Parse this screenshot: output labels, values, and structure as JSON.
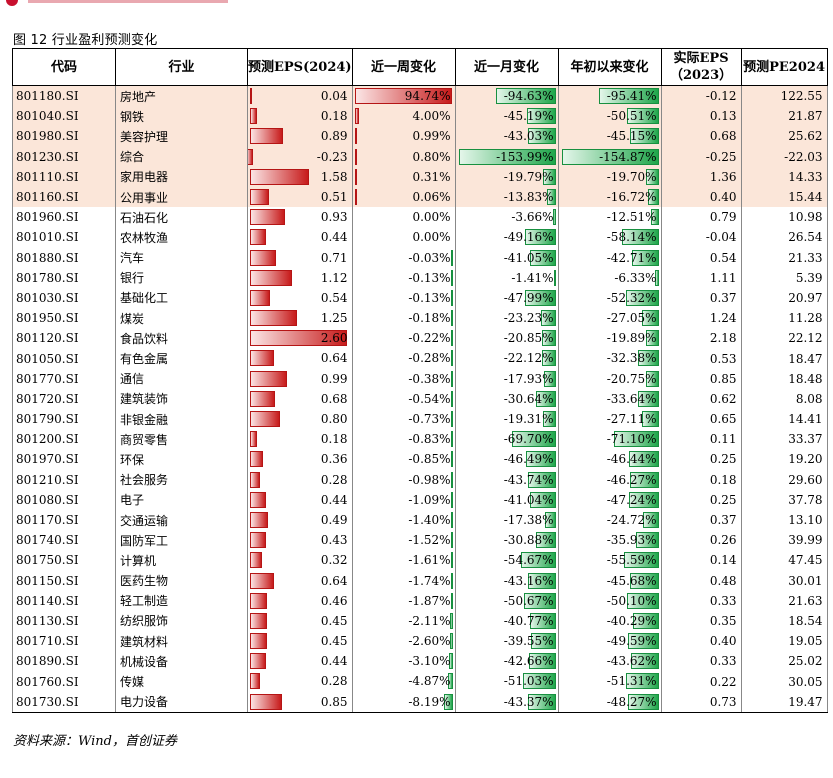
{
  "figure_title": "图 12 行业盈利预测变化",
  "source": "资料来源：Wind，首创证券",
  "colors": {
    "highlight_row": "#fbe6d9",
    "bar_red": "#c71b1b",
    "bar_green": "#1fa64a"
  },
  "headers": {
    "code": "代码",
    "industry": "行业",
    "eps": "预测EPS(2024)",
    "week": "近一周变化",
    "month": "近一月变化",
    "ytd": "年初以来变化",
    "actual_line1": "实际EPS",
    "actual_line2": "（2023）",
    "pe": "预测PE2024"
  },
  "rows": [
    {
      "code": "801180.SI",
      "industry": "房地产",
      "eps": 0.04,
      "eps_t": "0.04",
      "wk": 94.74,
      "wk_t": "94.74%",
      "mo": -94.63,
      "mo_t": "-94.63%",
      "ytd": -95.41,
      "ytd_t": "-95.41%",
      "act": "-0.12",
      "pe": "122.55",
      "hl": true
    },
    {
      "code": "801040.SI",
      "industry": "钢铁",
      "eps": 0.18,
      "eps_t": "0.18",
      "wk": 4.0,
      "wk_t": "4.00%",
      "mo": -45.19,
      "mo_t": "-45.19%",
      "ytd": -50.51,
      "ytd_t": "-50.51%",
      "act": "0.13",
      "pe": "21.87",
      "hl": true
    },
    {
      "code": "801980.SI",
      "industry": "美容护理",
      "eps": 0.89,
      "eps_t": "0.89",
      "wk": 0.99,
      "wk_t": "0.99%",
      "mo": -43.03,
      "mo_t": "-43.03%",
      "ytd": -45.15,
      "ytd_t": "-45.15%",
      "act": "0.68",
      "pe": "25.62",
      "hl": true
    },
    {
      "code": "801230.SI",
      "industry": "综合",
      "eps": -0.23,
      "eps_t": "-0.23",
      "wk": 0.8,
      "wk_t": "0.80%",
      "mo": -153.99,
      "mo_t": "-153.99%",
      "ytd": -154.87,
      "ytd_t": "-154.87%",
      "act": "-0.25",
      "pe": "-22.03",
      "hl": true
    },
    {
      "code": "801110.SI",
      "industry": "家用电器",
      "eps": 1.58,
      "eps_t": "1.58",
      "wk": 0.31,
      "wk_t": "0.31%",
      "mo": -19.79,
      "mo_t": "-19.79%",
      "ytd": -19.7,
      "ytd_t": "-19.70%",
      "act": "1.36",
      "pe": "14.33",
      "hl": true
    },
    {
      "code": "801160.SI",
      "industry": "公用事业",
      "eps": 0.51,
      "eps_t": "0.51",
      "wk": 0.06,
      "wk_t": "0.06%",
      "mo": -13.83,
      "mo_t": "-13.83%",
      "ytd": -16.72,
      "ytd_t": "-16.72%",
      "act": "0.40",
      "pe": "15.44",
      "hl": true
    },
    {
      "code": "801960.SI",
      "industry": "石油石化",
      "eps": 0.93,
      "eps_t": "0.93",
      "wk": 0.0,
      "wk_t": "0.00%",
      "mo": -3.66,
      "mo_t": "-3.66%",
      "ytd": -12.51,
      "ytd_t": "-12.51%",
      "act": "0.79",
      "pe": "10.98",
      "hl": false
    },
    {
      "code": "801010.SI",
      "industry": "农林牧渔",
      "eps": 0.44,
      "eps_t": "0.44",
      "wk": 0.0,
      "wk_t": "0.00%",
      "mo": -49.16,
      "mo_t": "-49.16%",
      "ytd": -58.14,
      "ytd_t": "-58.14%",
      "act": "-0.04",
      "pe": "26.54",
      "hl": false
    },
    {
      "code": "801880.SI",
      "industry": "汽车",
      "eps": 0.71,
      "eps_t": "0.71",
      "wk": -0.03,
      "wk_t": "-0.03%",
      "mo": -41.05,
      "mo_t": "-41.05%",
      "ytd": -42.71,
      "ytd_t": "-42.71%",
      "act": "0.54",
      "pe": "21.33",
      "hl": false
    },
    {
      "code": "801780.SI",
      "industry": "银行",
      "eps": 1.12,
      "eps_t": "1.12",
      "wk": -0.13,
      "wk_t": "-0.13%",
      "mo": -1.41,
      "mo_t": "-1.41%",
      "ytd": -6.33,
      "ytd_t": "-6.33%",
      "act": "1.11",
      "pe": "5.39",
      "hl": false
    },
    {
      "code": "801030.SI",
      "industry": "基础化工",
      "eps": 0.54,
      "eps_t": "0.54",
      "wk": -0.13,
      "wk_t": "-0.13%",
      "mo": -47.99,
      "mo_t": "-47.99%",
      "ytd": -52.32,
      "ytd_t": "-52.32%",
      "act": "0.37",
      "pe": "20.97",
      "hl": false
    },
    {
      "code": "801950.SI",
      "industry": "煤炭",
      "eps": 1.25,
      "eps_t": "1.25",
      "wk": -0.18,
      "wk_t": "-0.18%",
      "mo": -23.23,
      "mo_t": "-23.23%",
      "ytd": -27.05,
      "ytd_t": "-27.05%",
      "act": "1.24",
      "pe": "11.28",
      "hl": false
    },
    {
      "code": "801120.SI",
      "industry": "食品饮料",
      "eps": 2.6,
      "eps_t": "2.60",
      "wk": -0.22,
      "wk_t": "-0.22%",
      "mo": -20.85,
      "mo_t": "-20.85%",
      "ytd": -19.89,
      "ytd_t": "-19.89%",
      "act": "2.18",
      "pe": "22.12",
      "hl": false
    },
    {
      "code": "801050.SI",
      "industry": "有色金属",
      "eps": 0.64,
      "eps_t": "0.64",
      "wk": -0.28,
      "wk_t": "-0.28%",
      "mo": -22.12,
      "mo_t": "-22.12%",
      "ytd": -32.38,
      "ytd_t": "-32.38%",
      "act": "0.53",
      "pe": "18.47",
      "hl": false
    },
    {
      "code": "801770.SI",
      "industry": "通信",
      "eps": 0.99,
      "eps_t": "0.99",
      "wk": -0.38,
      "wk_t": "-0.38%",
      "mo": -17.93,
      "mo_t": "-17.93%",
      "ytd": -20.75,
      "ytd_t": "-20.75%",
      "act": "0.85",
      "pe": "18.48",
      "hl": false
    },
    {
      "code": "801720.SI",
      "industry": "建筑装饰",
      "eps": 0.68,
      "eps_t": "0.68",
      "wk": -0.54,
      "wk_t": "-0.54%",
      "mo": -30.64,
      "mo_t": "-30.64%",
      "ytd": -33.64,
      "ytd_t": "-33.64%",
      "act": "0.62",
      "pe": "8.08",
      "hl": false
    },
    {
      "code": "801790.SI",
      "industry": "非银金融",
      "eps": 0.8,
      "eps_t": "0.80",
      "wk": -0.73,
      "wk_t": "-0.73%",
      "mo": -19.31,
      "mo_t": "-19.31%",
      "ytd": -27.11,
      "ytd_t": "-27.11%",
      "act": "0.65",
      "pe": "14.41",
      "hl": false
    },
    {
      "code": "801200.SI",
      "industry": "商贸零售",
      "eps": 0.18,
      "eps_t": "0.18",
      "wk": -0.83,
      "wk_t": "-0.83%",
      "mo": -69.7,
      "mo_t": "-69.70%",
      "ytd": -71.1,
      "ytd_t": "-71.10%",
      "act": "0.11",
      "pe": "33.37",
      "hl": false
    },
    {
      "code": "801970.SI",
      "industry": "环保",
      "eps": 0.36,
      "eps_t": "0.36",
      "wk": -0.85,
      "wk_t": "-0.85%",
      "mo": -46.49,
      "mo_t": "-46.49%",
      "ytd": -46.44,
      "ytd_t": "-46.44%",
      "act": "0.25",
      "pe": "19.20",
      "hl": false
    },
    {
      "code": "801210.SI",
      "industry": "社会服务",
      "eps": 0.28,
      "eps_t": "0.28",
      "wk": -0.98,
      "wk_t": "-0.98%",
      "mo": -43.74,
      "mo_t": "-43.74%",
      "ytd": -46.27,
      "ytd_t": "-46.27%",
      "act": "0.18",
      "pe": "29.60",
      "hl": false
    },
    {
      "code": "801080.SI",
      "industry": "电子",
      "eps": 0.44,
      "eps_t": "0.44",
      "wk": -1.09,
      "wk_t": "-1.09%",
      "mo": -41.04,
      "mo_t": "-41.04%",
      "ytd": -47.24,
      "ytd_t": "-47.24%",
      "act": "0.25",
      "pe": "37.78",
      "hl": false
    },
    {
      "code": "801170.SI",
      "industry": "交通运输",
      "eps": 0.49,
      "eps_t": "0.49",
      "wk": -1.4,
      "wk_t": "-1.40%",
      "mo": -17.38,
      "mo_t": "-17.38%",
      "ytd": -24.72,
      "ytd_t": "-24.72%",
      "act": "0.37",
      "pe": "13.10",
      "hl": false
    },
    {
      "code": "801740.SI",
      "industry": "国防军工",
      "eps": 0.43,
      "eps_t": "0.43",
      "wk": -1.52,
      "wk_t": "-1.52%",
      "mo": -30.88,
      "mo_t": "-30.88%",
      "ytd": -35.93,
      "ytd_t": "-35.93%",
      "act": "0.26",
      "pe": "39.99",
      "hl": false
    },
    {
      "code": "801750.SI",
      "industry": "计算机",
      "eps": 0.32,
      "eps_t": "0.32",
      "wk": -1.61,
      "wk_t": "-1.61%",
      "mo": -54.67,
      "mo_t": "-54.67%",
      "ytd": -55.59,
      "ytd_t": "-55.59%",
      "act": "0.14",
      "pe": "47.45",
      "hl": false
    },
    {
      "code": "801150.SI",
      "industry": "医药生物",
      "eps": 0.64,
      "eps_t": "0.64",
      "wk": -1.74,
      "wk_t": "-1.74%",
      "mo": -43.16,
      "mo_t": "-43.16%",
      "ytd": -45.68,
      "ytd_t": "-45.68%",
      "act": "0.48",
      "pe": "30.01",
      "hl": false
    },
    {
      "code": "801140.SI",
      "industry": "轻工制造",
      "eps": 0.46,
      "eps_t": "0.46",
      "wk": -1.87,
      "wk_t": "-1.87%",
      "mo": -50.67,
      "mo_t": "-50.67%",
      "ytd": -50.1,
      "ytd_t": "-50.10%",
      "act": "0.33",
      "pe": "21.63",
      "hl": false
    },
    {
      "code": "801130.SI",
      "industry": "纺织服饰",
      "eps": 0.45,
      "eps_t": "0.45",
      "wk": -2.11,
      "wk_t": "-2.11%",
      "mo": -40.77,
      "mo_t": "-40.77%",
      "ytd": -40.29,
      "ytd_t": "-40.29%",
      "act": "0.35",
      "pe": "18.54",
      "hl": false
    },
    {
      "code": "801710.SI",
      "industry": "建筑材料",
      "eps": 0.45,
      "eps_t": "0.45",
      "wk": -2.6,
      "wk_t": "-2.60%",
      "mo": -39.55,
      "mo_t": "-39.55%",
      "ytd": -49.59,
      "ytd_t": "-49.59%",
      "act": "0.40",
      "pe": "19.05",
      "hl": false
    },
    {
      "code": "801890.SI",
      "industry": "机械设备",
      "eps": 0.44,
      "eps_t": "0.44",
      "wk": -3.1,
      "wk_t": "-3.10%",
      "mo": -42.66,
      "mo_t": "-42.66%",
      "ytd": -43.62,
      "ytd_t": "-43.62%",
      "act": "0.33",
      "pe": "25.02",
      "hl": false
    },
    {
      "code": "801760.SI",
      "industry": "传媒",
      "eps": 0.28,
      "eps_t": "0.28",
      "wk": -4.87,
      "wk_t": "-4.87%",
      "mo": -51.03,
      "mo_t": "-51.03%",
      "ytd": -51.31,
      "ytd_t": "-51.31%",
      "act": "0.22",
      "pe": "30.05",
      "hl": false
    },
    {
      "code": "801730.SI",
      "industry": "电力设备",
      "eps": 0.85,
      "eps_t": "0.85",
      "wk": -8.19,
      "wk_t": "-8.19%",
      "mo": -43.37,
      "mo_t": "-43.37%",
      "ytd": -48.27,
      "ytd_t": "-48.27%",
      "act": "0.73",
      "pe": "19.47",
      "hl": false
    }
  ]
}
